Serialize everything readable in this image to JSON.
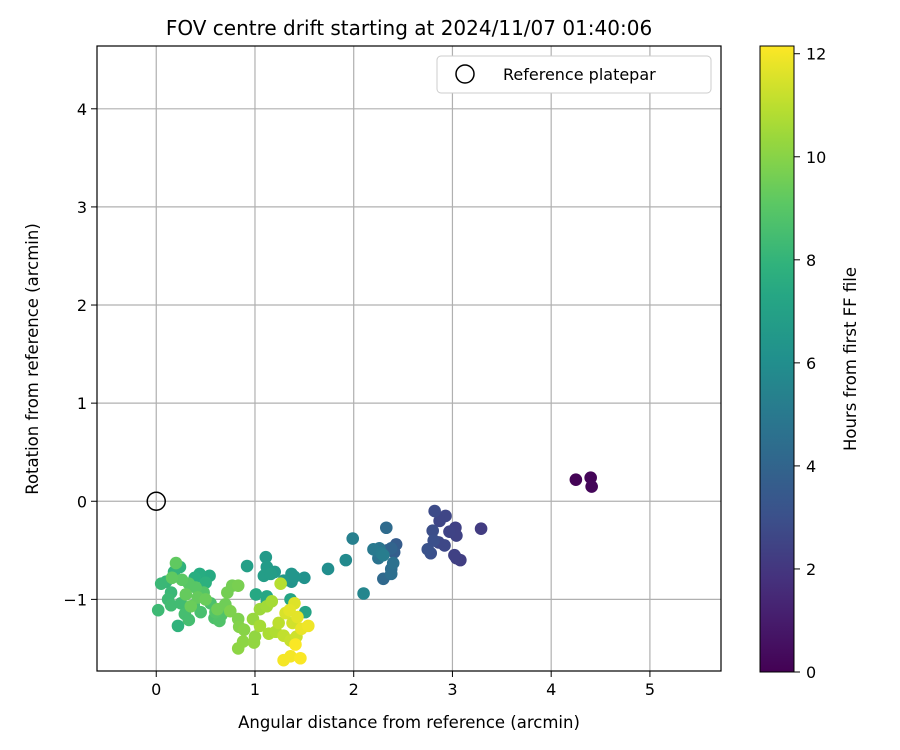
{
  "chart_data": {
    "type": "scatter",
    "title": "FOV centre drift starting at 2024/11/07 01:40:06",
    "xlabel": "Angular distance from reference (arcmin)",
    "ylabel": "Rotation from reference (arcmin)",
    "xlim": [
      -0.6,
      5.72
    ],
    "ylim": [
      -1.73,
      4.64
    ],
    "xticks": [
      0,
      1,
      2,
      3,
      4,
      5
    ],
    "yticks": [
      -1,
      0,
      1,
      2,
      3,
      4
    ],
    "grid": true,
    "legend": {
      "placement": "top-right",
      "entries": [
        "Reference platepar"
      ]
    },
    "reference_point": {
      "x": 0,
      "y": 0,
      "marker": "open-circle",
      "edge_color": "#000000"
    },
    "colorbar": {
      "label": "Hours from first FF file",
      "range": [
        0,
        12.15
      ],
      "ticks": [
        0,
        2,
        4,
        6,
        8,
        10,
        12
      ],
      "colormap": "viridis"
    },
    "points": [
      {
        "x": 4.25,
        "y": 0.22,
        "h": 0.1
      },
      {
        "x": 4.4,
        "y": 0.24,
        "h": 0.15
      },
      {
        "x": 4.41,
        "y": 0.15,
        "h": 0.2
      },
      {
        "x": 3.29,
        "y": -0.28,
        "h": 2.2
      },
      {
        "x": 3.08,
        "y": -0.6,
        "h": 2.3
      },
      {
        "x": 3.04,
        "y": -0.58,
        "h": 2.35
      },
      {
        "x": 3.02,
        "y": -0.55,
        "h": 2.4
      },
      {
        "x": 3.03,
        "y": -0.27,
        "h": 2.4
      },
      {
        "x": 3.04,
        "y": -0.35,
        "h": 2.45
      },
      {
        "x": 2.97,
        "y": -0.31,
        "h": 2.5
      },
      {
        "x": 2.93,
        "y": -0.15,
        "h": 2.6
      },
      {
        "x": 2.87,
        "y": -0.2,
        "h": 2.6
      },
      {
        "x": 2.92,
        "y": -0.45,
        "h": 2.7
      },
      {
        "x": 2.86,
        "y": -0.42,
        "h": 2.7
      },
      {
        "x": 2.82,
        "y": -0.1,
        "h": 2.8
      },
      {
        "x": 2.8,
        "y": -0.3,
        "h": 2.9
      },
      {
        "x": 2.78,
        "y": -0.53,
        "h": 3.0
      },
      {
        "x": 2.75,
        "y": -0.49,
        "h": 3.1
      },
      {
        "x": 2.81,
        "y": -0.4,
        "h": 3.0
      },
      {
        "x": 2.43,
        "y": -0.44,
        "h": 3.6
      },
      {
        "x": 2.41,
        "y": -0.52,
        "h": 3.7
      },
      {
        "x": 2.34,
        "y": -0.5,
        "h": 3.9
      },
      {
        "x": 2.38,
        "y": -0.48,
        "h": 4.0
      },
      {
        "x": 2.33,
        "y": -0.27,
        "h": 4.3
      },
      {
        "x": 2.3,
        "y": -0.79,
        "h": 4.2
      },
      {
        "x": 2.38,
        "y": -0.69,
        "h": 4.4
      },
      {
        "x": 2.38,
        "y": -0.74,
        "h": 4.5
      },
      {
        "x": 2.4,
        "y": -0.63,
        "h": 4.6
      },
      {
        "x": 2.25,
        "y": -0.58,
        "h": 4.7
      },
      {
        "x": 2.26,
        "y": -0.48,
        "h": 4.8
      },
      {
        "x": 2.2,
        "y": -0.49,
        "h": 5.0
      },
      {
        "x": 2.28,
        "y": -0.53,
        "h": 5.1
      },
      {
        "x": 2.3,
        "y": -0.55,
        "h": 5.2
      },
      {
        "x": 1.99,
        "y": -0.38,
        "h": 5.3
      },
      {
        "x": 2.1,
        "y": -0.94,
        "h": 5.6
      },
      {
        "x": 1.92,
        "y": -0.6,
        "h": 5.8
      },
      {
        "x": 1.74,
        "y": -0.69,
        "h": 6.0
      },
      {
        "x": 1.5,
        "y": -0.78,
        "h": 6.2
      },
      {
        "x": 1.37,
        "y": -0.82,
        "h": 6.3
      },
      {
        "x": 1.37,
        "y": -0.74,
        "h": 6.4
      },
      {
        "x": 1.4,
        "y": -0.77,
        "h": 6.4
      },
      {
        "x": 1.29,
        "y": -0.81,
        "h": 6.5
      },
      {
        "x": 1.2,
        "y": -0.72,
        "h": 6.6
      },
      {
        "x": 1.11,
        "y": -0.57,
        "h": 6.6
      },
      {
        "x": 1.12,
        "y": -0.67,
        "h": 6.7
      },
      {
        "x": 1.09,
        "y": -0.76,
        "h": 6.8
      },
      {
        "x": 1.16,
        "y": -0.74,
        "h": 6.8
      },
      {
        "x": 0.92,
        "y": -0.66,
        "h": 6.9
      },
      {
        "x": 1.51,
        "y": -1.13,
        "h": 7.1
      },
      {
        "x": 1.36,
        "y": -1.0,
        "h": 7.2
      },
      {
        "x": 1.12,
        "y": -1.02,
        "h": 7.3
      },
      {
        "x": 1.12,
        "y": -0.97,
        "h": 7.3
      },
      {
        "x": 1.01,
        "y": -0.95,
        "h": 7.4
      },
      {
        "x": 0.54,
        "y": -0.76,
        "h": 7.5
      },
      {
        "x": 0.44,
        "y": -0.74,
        "h": 7.6
      },
      {
        "x": 0.39,
        "y": -0.78,
        "h": 7.7
      },
      {
        "x": 0.5,
        "y": -0.83,
        "h": 7.8
      },
      {
        "x": 0.24,
        "y": -0.67,
        "h": 7.9
      },
      {
        "x": 0.22,
        "y": -1.27,
        "h": 7.9
      },
      {
        "x": 0.18,
        "y": -0.72,
        "h": 8.0
      },
      {
        "x": 0.1,
        "y": -0.82,
        "h": 8.1
      },
      {
        "x": 0.05,
        "y": -0.84,
        "h": 8.2
      },
      {
        "x": 0.15,
        "y": -0.93,
        "h": 8.2
      },
      {
        "x": 0.12,
        "y": -1.0,
        "h": 8.3
      },
      {
        "x": 0.02,
        "y": -1.11,
        "h": 8.3
      },
      {
        "x": 0.15,
        "y": -1.06,
        "h": 8.4
      },
      {
        "x": 0.25,
        "y": -1.04,
        "h": 8.4
      },
      {
        "x": 0.29,
        "y": -1.15,
        "h": 8.5
      },
      {
        "x": 0.33,
        "y": -1.21,
        "h": 8.5
      },
      {
        "x": 0.38,
        "y": -1.06,
        "h": 8.6
      },
      {
        "x": 0.45,
        "y": -1.13,
        "h": 8.6
      },
      {
        "x": 0.55,
        "y": -1.04,
        "h": 8.7
      },
      {
        "x": 0.59,
        "y": -1.19,
        "h": 8.7
      },
      {
        "x": 0.64,
        "y": -1.22,
        "h": 8.8
      },
      {
        "x": 0.66,
        "y": -1.16,
        "h": 8.8
      },
      {
        "x": 0.6,
        "y": -1.13,
        "h": 8.9
      },
      {
        "x": 0.48,
        "y": -0.93,
        "h": 8.9
      },
      {
        "x": 0.4,
        "y": -0.88,
        "h": 9.0
      },
      {
        "x": 0.33,
        "y": -0.84,
        "h": 9.0
      },
      {
        "x": 0.26,
        "y": -0.8,
        "h": 9.1
      },
      {
        "x": 0.2,
        "y": -0.63,
        "h": 9.2
      },
      {
        "x": 0.16,
        "y": -0.78,
        "h": 9.2
      },
      {
        "x": 0.3,
        "y": -0.95,
        "h": 9.3
      },
      {
        "x": 0.42,
        "y": -0.98,
        "h": 9.3
      },
      {
        "x": 0.35,
        "y": -1.07,
        "h": 9.4
      },
      {
        "x": 0.5,
        "y": -1.0,
        "h": 9.4
      },
      {
        "x": 0.62,
        "y": -1.1,
        "h": 9.5
      },
      {
        "x": 0.7,
        "y": -1.05,
        "h": 9.5
      },
      {
        "x": 0.72,
        "y": -0.93,
        "h": 9.6
      },
      {
        "x": 0.77,
        "y": -0.86,
        "h": 9.6
      },
      {
        "x": 0.83,
        "y": -0.86,
        "h": 9.7
      },
      {
        "x": 0.75,
        "y": -1.12,
        "h": 9.8
      },
      {
        "x": 0.83,
        "y": -1.2,
        "h": 9.8
      },
      {
        "x": 0.84,
        "y": -1.28,
        "h": 9.9
      },
      {
        "x": 0.89,
        "y": -1.31,
        "h": 10.0
      },
      {
        "x": 0.83,
        "y": -1.5,
        "h": 10.1
      },
      {
        "x": 0.88,
        "y": -1.43,
        "h": 10.1
      },
      {
        "x": 0.99,
        "y": -1.44,
        "h": 10.2
      },
      {
        "x": 1.0,
        "y": -1.38,
        "h": 10.2
      },
      {
        "x": 0.98,
        "y": -1.2,
        "h": 10.3
      },
      {
        "x": 1.05,
        "y": -1.1,
        "h": 10.4
      },
      {
        "x": 1.12,
        "y": -1.07,
        "h": 10.5
      },
      {
        "x": 1.17,
        "y": -1.02,
        "h": 10.6
      },
      {
        "x": 1.05,
        "y": -1.27,
        "h": 10.6
      },
      {
        "x": 1.14,
        "y": -1.35,
        "h": 10.7
      },
      {
        "x": 1.21,
        "y": -1.33,
        "h": 10.8
      },
      {
        "x": 1.26,
        "y": -0.84,
        "h": 10.9
      },
      {
        "x": 1.24,
        "y": -1.24,
        "h": 11.0
      },
      {
        "x": 1.29,
        "y": -1.37,
        "h": 11.1
      },
      {
        "x": 1.36,
        "y": -1.42,
        "h": 11.2
      },
      {
        "x": 1.42,
        "y": -1.38,
        "h": 11.3
      },
      {
        "x": 1.38,
        "y": -1.24,
        "h": 11.4
      },
      {
        "x": 1.31,
        "y": -1.14,
        "h": 11.5
      },
      {
        "x": 1.4,
        "y": -1.04,
        "h": 11.6
      },
      {
        "x": 1.35,
        "y": -1.11,
        "h": 11.7
      },
      {
        "x": 1.43,
        "y": -1.18,
        "h": 11.7
      },
      {
        "x": 1.47,
        "y": -1.3,
        "h": 11.8
      },
      {
        "x": 1.54,
        "y": -1.27,
        "h": 11.9
      },
      {
        "x": 1.36,
        "y": -1.58,
        "h": 12.0
      },
      {
        "x": 1.29,
        "y": -1.62,
        "h": 12.0
      },
      {
        "x": 1.46,
        "y": -1.6,
        "h": 12.1
      },
      {
        "x": 1.41,
        "y": -1.46,
        "h": 12.1
      }
    ]
  }
}
